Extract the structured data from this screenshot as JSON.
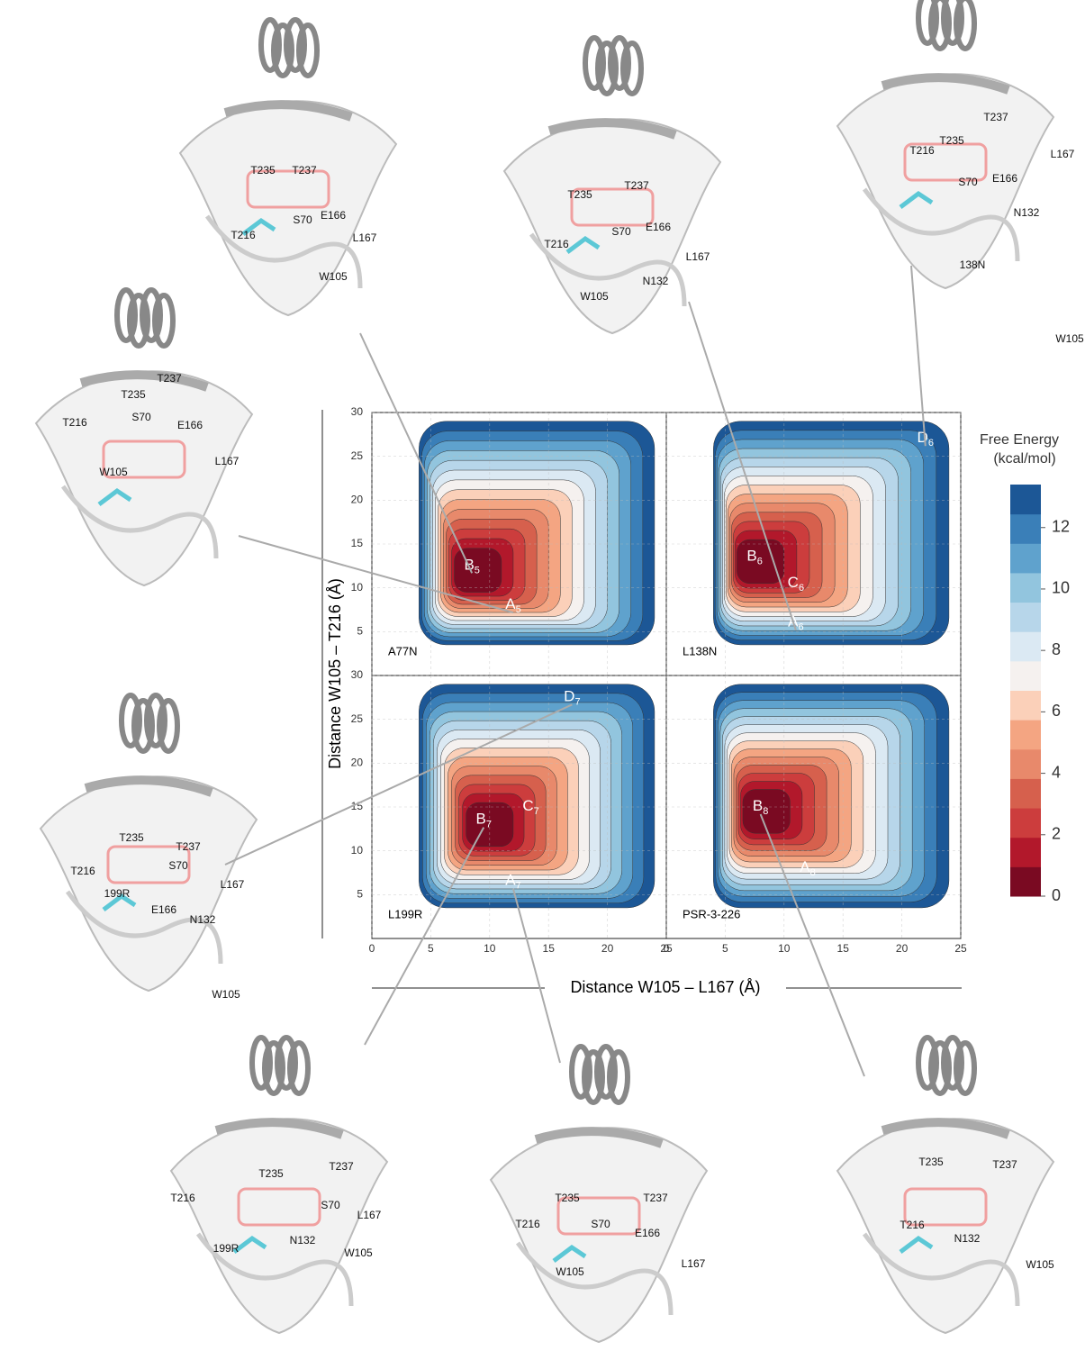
{
  "chart_data": {
    "type": "contour",
    "xlabel": "Distance  W105 – L167 (Å)",
    "ylabel": "Distance  W105 – T216 (Å)",
    "xlim": [
      0,
      25
    ],
    "ylim": [
      0,
      30
    ],
    "xticks": [
      0,
      5,
      10,
      15,
      20,
      25
    ],
    "yticks": [
      5,
      10,
      15,
      20,
      25,
      30
    ],
    "grid": true,
    "panels": [
      {
        "name": "A77N",
        "states": [
          {
            "label": "B",
            "subscript": "5",
            "x": 8.5,
            "y": 12.5
          },
          {
            "label": "A",
            "subscript": "5",
            "x": 12,
            "y": 8
          }
        ]
      },
      {
        "name": "L138N",
        "states": [
          {
            "label": "B",
            "subscript": "6",
            "x": 7.5,
            "y": 13.5
          },
          {
            "label": "C",
            "subscript": "6",
            "x": 11,
            "y": 10.5
          },
          {
            "label": "A",
            "subscript": "6",
            "x": 11,
            "y": 6
          },
          {
            "label": "D",
            "subscript": "6",
            "x": 22,
            "y": 27
          }
        ]
      },
      {
        "name": "L199R",
        "states": [
          {
            "label": "B",
            "subscript": "7",
            "x": 9.5,
            "y": 13.5
          },
          {
            "label": "C",
            "subscript": "7",
            "x": 13.5,
            "y": 15
          },
          {
            "label": "A",
            "subscript": "7",
            "x": 12,
            "y": 6.5
          },
          {
            "label": "D",
            "subscript": "7",
            "x": 17,
            "y": 27.5
          }
        ]
      },
      {
        "name": "PSR-3-226",
        "states": [
          {
            "label": "B",
            "subscript": "8",
            "x": 8,
            "y": 15
          },
          {
            "label": "A",
            "subscript": "8",
            "x": 12,
            "y": 8
          }
        ]
      }
    ],
    "colorbar": {
      "title": [
        "Free Energy",
        "(kcal/mol)"
      ],
      "lim": [
        0,
        13.4
      ],
      "ticks": [
        0,
        2,
        4,
        6,
        8,
        10,
        12
      ],
      "colors": [
        "#7a0a22",
        "#b2182b",
        "#cc3d3d",
        "#d6604d",
        "#e8896b",
        "#f4a582",
        "#fbd0b9",
        "#f5f1ef",
        "#dbe9f3",
        "#b7d6ea",
        "#92c5de",
        "#5fa2cd",
        "#3a7fb8",
        "#1c5796"
      ]
    }
  },
  "structures": [
    {
      "labels": [
        "T235",
        "T237",
        "T216",
        "S70",
        "E166",
        "L167",
        "W105"
      ]
    },
    {
      "labels": [
        "T235",
        "T237",
        "T216",
        "S70",
        "E166",
        "L167",
        "W105",
        "N132"
      ]
    },
    {
      "labels": [
        "T237",
        "T235",
        "T216",
        "L167",
        "S70",
        "E166",
        "N132",
        "138N",
        "W105"
      ]
    },
    {
      "labels": [
        "T237",
        "T235",
        "T216",
        "S70",
        "E166",
        "L167",
        "W105"
      ]
    },
    {
      "labels": [
        "T235",
        "T237",
        "T216",
        "S70",
        "199R",
        "L167",
        "E166",
        "N132",
        "W105"
      ]
    },
    {
      "labels": [
        "T235",
        "T237",
        "T216",
        "S70",
        "L167",
        "199R",
        "N132",
        "W105"
      ]
    },
    {
      "labels": [
        "T235",
        "T237",
        "T216",
        "S70",
        "E166",
        "L167",
        "W105"
      ]
    },
    {
      "labels": [
        "T235",
        "T237",
        "T216",
        "N132",
        "W105"
      ]
    }
  ]
}
